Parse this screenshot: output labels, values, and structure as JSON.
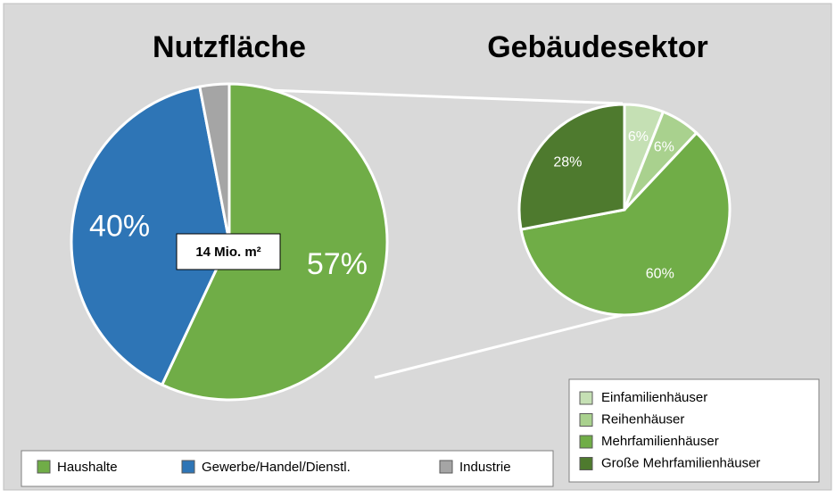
{
  "chart_data": [
    {
      "type": "pie",
      "title": "Nutzfläche",
      "categories": [
        "Haushalte",
        "Gewerbe/Handel/Dienstl.",
        "Industrie"
      ],
      "values": [
        57,
        40,
        3
      ],
      "value_labels": [
        "57%",
        "40%",
        null
      ],
      "colors": [
        "#70ad47",
        "#2e75b6",
        "#a5a5a5"
      ],
      "annotation": "14 Mio. m²",
      "legend": "bottom"
    },
    {
      "type": "pie",
      "title": "Gebäudesektor",
      "categories": [
        "Einfamilienhäuser",
        "Reihenhäuser",
        "Mehrfamilienhäuser",
        "Große Mehrfamilienhäuser"
      ],
      "values": [
        6,
        6,
        60,
        28
      ],
      "value_labels": [
        "6%",
        "6%",
        "60%",
        "28%"
      ],
      "colors": [
        "#c5e0b4",
        "#a9d18e",
        "#70ad47",
        "#4e7a2e"
      ],
      "legend": "bottom-right"
    }
  ]
}
